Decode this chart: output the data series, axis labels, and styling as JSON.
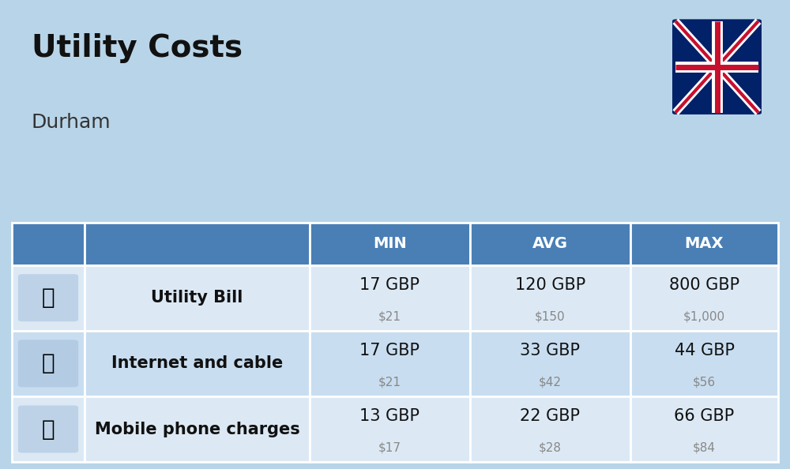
{
  "title": "Utility Costs",
  "subtitle": "Durham",
  "background_color": "#b8d4e8",
  "header_color": "#4a7fb5",
  "header_text_color": "#ffffff",
  "row_color_light": "#dce9f5",
  "row_color_dark": "#c8ddf0",
  "categories": [
    "Utility Bill",
    "Internet and cable",
    "Mobile phone charges"
  ],
  "columns": [
    "MIN",
    "AVG",
    "MAX"
  ],
  "data": [
    [
      "17 GBP",
      "120 GBP",
      "800 GBP"
    ],
    [
      "17 GBP",
      "33 GBP",
      "44 GBP"
    ],
    [
      "13 GBP",
      "22 GBP",
      "66 GBP"
    ]
  ],
  "sub_data": [
    [
      "$21",
      "$150",
      "$1,000"
    ],
    [
      "$21",
      "$42",
      "$56"
    ],
    [
      "$17",
      "$28",
      "$84"
    ]
  ],
  "title_fontsize": 28,
  "subtitle_fontsize": 18,
  "header_fontsize": 14,
  "cell_fontsize": 15,
  "sub_fontsize": 11,
  "category_fontsize": 15,
  "flag_blue": "#012169",
  "flag_red": "#C8102E",
  "text_dark": "#111111",
  "text_gray": "#888888"
}
